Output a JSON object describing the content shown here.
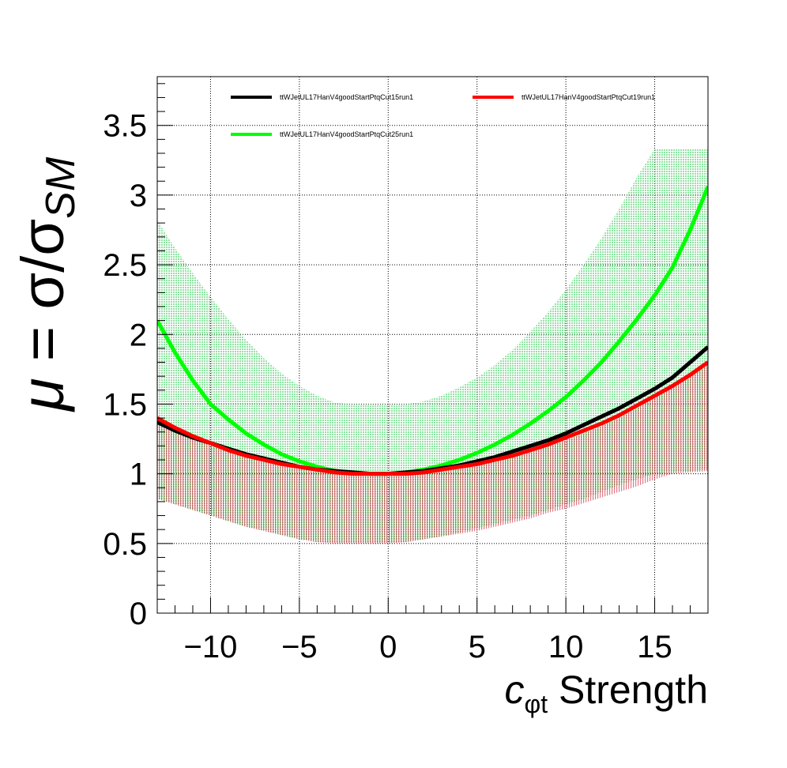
{
  "chart_data": {
    "type": "line",
    "xlabel_main": "c",
    "xlabel_sub": "φt",
    "xlabel_rest": " Strength",
    "ylabel_mu": "μ",
    "ylabel_eq": " = σ/σ",
    "ylabel_sub": "SM",
    "xlim": [
      -13,
      18
    ],
    "ylim": [
      0,
      3.85
    ],
    "x_ticks": [
      -10,
      -5,
      0,
      5,
      10,
      15
    ],
    "x_tick_labels": [
      "−10",
      "−5",
      "0",
      "5",
      "10",
      "15"
    ],
    "y_ticks": [
      0,
      0.5,
      1,
      1.5,
      2,
      2.5,
      3,
      3.5
    ],
    "y_tick_labels": [
      "0",
      "0.5",
      "1",
      "1.5",
      "2",
      "2.5",
      "3",
      "3.5"
    ],
    "grid": true,
    "legend_position": "top",
    "x": [
      -13,
      -12,
      -11,
      -10,
      -9,
      -8,
      -7,
      -6,
      -5,
      -4,
      -3,
      -2,
      -1,
      0,
      1,
      2,
      3,
      4,
      5,
      6,
      7,
      8,
      9,
      10,
      11,
      12,
      13,
      14,
      15,
      16,
      17,
      18
    ],
    "series": [
      {
        "name": "ttWJetUL17HanV4goodStartPtqCut15run1",
        "color": "#000000",
        "values": [
          1.37,
          1.31,
          1.26,
          1.22,
          1.18,
          1.14,
          1.11,
          1.08,
          1.05,
          1.03,
          1.02,
          1.01,
          1.0,
          1.0,
          1.01,
          1.02,
          1.04,
          1.06,
          1.09,
          1.12,
          1.16,
          1.2,
          1.24,
          1.29,
          1.35,
          1.41,
          1.47,
          1.54,
          1.61,
          1.69,
          1.8,
          1.91
        ]
      },
      {
        "name": "ttWJetUL17HanV4goodStartPtqCut19run1",
        "color": "#ff0000",
        "values": [
          1.4,
          1.33,
          1.27,
          1.22,
          1.17,
          1.13,
          1.1,
          1.07,
          1.05,
          1.03,
          1.01,
          1.0,
          1.0,
          1.0,
          1.0,
          1.01,
          1.03,
          1.05,
          1.07,
          1.1,
          1.13,
          1.17,
          1.21,
          1.26,
          1.31,
          1.36,
          1.42,
          1.49,
          1.56,
          1.63,
          1.71,
          1.8
        ],
        "band_lower": [
          0.82,
          0.78,
          0.74,
          0.7,
          0.66,
          0.62,
          0.59,
          0.56,
          0.53,
          0.51,
          0.5,
          0.5,
          0.5,
          0.5,
          0.51,
          0.53,
          0.55,
          0.57,
          0.59,
          0.62,
          0.65,
          0.68,
          0.72,
          0.75,
          0.79,
          0.83,
          0.87,
          0.91,
          0.96,
          1.0,
          1.01,
          1.02
        ],
        "band_upper": [
          1.38,
          1.3,
          1.25,
          1.21,
          1.17,
          1.14,
          1.1,
          1.07,
          1.05,
          1.03,
          1.02,
          1.01,
          1.0,
          1.0,
          1.01,
          1.02,
          1.03,
          1.05,
          1.07,
          1.1,
          1.13,
          1.17,
          1.2,
          1.24,
          1.29,
          1.34,
          1.4,
          1.47,
          1.55,
          1.63,
          1.72,
          1.81
        ]
      },
      {
        "name": "ttWJetUL17HanV4goodStartPtqCut25run1",
        "color": "#00ff00",
        "values": [
          2.1,
          1.87,
          1.67,
          1.5,
          1.39,
          1.29,
          1.21,
          1.14,
          1.09,
          1.05,
          1.02,
          1.01,
          1.0,
          1.0,
          1.01,
          1.03,
          1.06,
          1.1,
          1.15,
          1.21,
          1.28,
          1.36,
          1.45,
          1.55,
          1.67,
          1.8,
          1.95,
          2.11,
          2.28,
          2.48,
          2.75,
          3.06
        ],
        "band_lower": [
          0.82,
          0.78,
          0.74,
          0.7,
          0.66,
          0.62,
          0.59,
          0.56,
          0.53,
          0.51,
          0.5,
          0.5,
          0.5,
          0.5,
          0.51,
          0.53,
          0.55,
          0.58,
          0.61,
          0.64,
          0.67,
          0.7,
          0.74,
          0.78,
          0.82,
          0.87,
          0.92,
          0.96,
          1.0,
          1.01,
          1.02,
          1.03
        ],
        "band_upper": [
          2.82,
          2.62,
          2.44,
          2.27,
          2.11,
          1.96,
          1.83,
          1.72,
          1.63,
          1.56,
          1.51,
          1.5,
          1.5,
          1.5,
          1.5,
          1.52,
          1.56,
          1.62,
          1.69,
          1.78,
          1.89,
          2.02,
          2.16,
          2.32,
          2.5,
          2.69,
          2.9,
          3.13,
          3.33,
          3.33,
          3.33,
          3.33
        ]
      }
    ]
  }
}
